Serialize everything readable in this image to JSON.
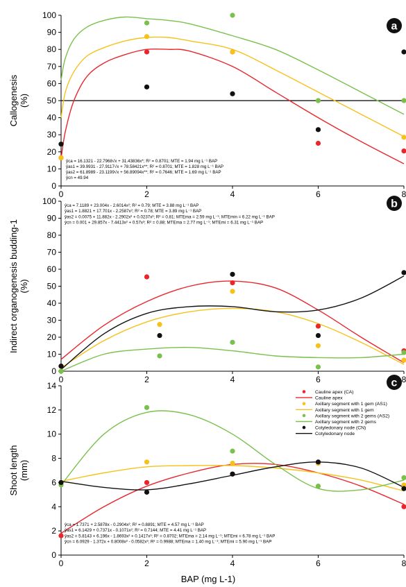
{
  "colors": {
    "CA": "#e8262b",
    "AS1": "#f7c11b",
    "AS2": "#7ac04c",
    "CN": "#111111"
  },
  "xlabel": "BAP (mg L-1)",
  "chart_data": [
    {
      "type": "scatter",
      "panel_label": "a",
      "ylabel_lines": [
        "Callogenesis",
        "(%)"
      ],
      "ylim": [
        0,
        100
      ],
      "yticks": [
        0,
        10,
        20,
        30,
        40,
        50,
        60,
        70,
        80,
        90,
        100
      ],
      "xlim": [
        0,
        8
      ],
      "xticks": [
        0,
        2,
        4,
        6,
        8
      ],
      "reference_line": 50,
      "equations": [
        "ŷca = 16.1321 - 22.7968√x + 31.43836x*; R² = 0.8701; MTE = 1.94 mg L⁻¹ BAP",
        "ŷas1 = 39.9931 - 27.9117√x + 78.58421x**; R² = 0.8701; MTE = 1.828 mg L⁻¹ BAP",
        "ŷas2 = 61.8989 - 23.1199√x + 56.89094x**; R² = 0.7646; MTE = 1.69 mg L⁻¹ BAP",
        "ŷcn = 49.94"
      ],
      "series": [
        {
          "key": "CA",
          "x": [
            0,
            2,
            4,
            6,
            8
          ],
          "y": [
            16.5,
            78.5,
            78.5,
            25,
            20.5
          ]
        },
        {
          "key": "AS1",
          "x": [
            0,
            2,
            4,
            6,
            8
          ],
          "y": [
            16.5,
            87.5,
            78.5,
            50,
            28.5
          ]
        },
        {
          "key": "AS2",
          "x": [
            0,
            2,
            4,
            6,
            8
          ],
          "y": [
            24.5,
            95.5,
            100,
            50,
            50
          ]
        },
        {
          "key": "CN",
          "x": [
            0,
            2,
            4,
            6,
            8
          ],
          "y": [
            24.5,
            58,
            54,
            33,
            78.5
          ]
        }
      ],
      "curves": [
        {
          "key": "CA",
          "x": [
            0,
            0.1,
            0.3,
            0.6,
            1,
            1.5,
            2,
            2.5,
            3,
            4,
            5,
            6,
            7,
            8
          ],
          "y": [
            16,
            32,
            50,
            64,
            72,
            77,
            80,
            80,
            79,
            70,
            55,
            40,
            26,
            13
          ]
        },
        {
          "key": "AS1",
          "x": [
            0,
            0.1,
            0.3,
            0.6,
            1,
            1.5,
            2,
            2.5,
            3,
            4,
            5,
            6,
            7,
            8
          ],
          "y": [
            40,
            55,
            67,
            76,
            81,
            85,
            87,
            87,
            85,
            80,
            68,
            55,
            42,
            29
          ]
        },
        {
          "key": "AS2",
          "x": [
            0,
            0.1,
            0.3,
            0.6,
            1,
            1.5,
            2,
            2.5,
            3,
            4,
            5,
            6,
            7,
            8
          ],
          "y": [
            62,
            75,
            86,
            93,
            97,
            99,
            98,
            97,
            95,
            88,
            80,
            68,
            55,
            42
          ]
        }
      ]
    },
    {
      "type": "scatter",
      "panel_label": "b",
      "ylabel_lines": [
        "Indirect organogenesis budding-1",
        "(%)"
      ],
      "ylim": [
        0,
        100
      ],
      "yticks": [
        0,
        10,
        20,
        30,
        40,
        50,
        60,
        70,
        80,
        90,
        100
      ],
      "xlim": [
        0,
        8
      ],
      "xticks": [
        0,
        2,
        4,
        6,
        8
      ],
      "equations": [
        "ŷca = 7.1189 + 23.004x - 2.6014x²; R² = 0.79; MTE = 3.88 mg L⁻¹ BAP",
        "ŷas1 = 1.8821 + 17.701x - 2.2587x²; R² = 0.78; MTE = 3.89 mg L⁻¹ BAP",
        "ŷas2 = 0.0075 + 11.882x - 2.2902x² + 0.0237x³; R² = 0.81; MTEma = 2.59 mg L⁻¹; MTEmin = 6.22 mg L⁻¹ BAP",
        "ŷcn = 0.001 + 29.857x - 7.4413x² + 0.57x³; R² = 0.88; MTEma = 2.77 mg L⁻¹; MTEmi = 6.31 mg L⁻¹ BAP"
      ],
      "series": [
        {
          "key": "CA",
          "x": [
            0,
            2,
            4,
            6,
            8
          ],
          "y": [
            3,
            55.5,
            52,
            26.5,
            12
          ]
        },
        {
          "key": "AS1",
          "x": [
            0,
            2.3,
            4,
            6,
            8
          ],
          "y": [
            0,
            27.5,
            47,
            15,
            6.5
          ]
        },
        {
          "key": "AS2",
          "x": [
            0,
            2.3,
            4,
            6,
            8
          ],
          "y": [
            0,
            9,
            17,
            2.5,
            11
          ]
        },
        {
          "key": "CN",
          "x": [
            0,
            2.3,
            4,
            6,
            8
          ],
          "y": [
            3,
            21,
            57,
            21,
            58
          ]
        }
      ],
      "curves": [
        {
          "key": "CA",
          "x": [
            0,
            1,
            2,
            3,
            4,
            5,
            6,
            7,
            8
          ],
          "y": [
            7,
            27,
            41,
            50,
            53,
            49,
            36,
            20,
            5
          ]
        },
        {
          "key": "AS1",
          "x": [
            0,
            1,
            2,
            3,
            4,
            5,
            6,
            7,
            8
          ],
          "y": [
            2,
            18,
            29,
            35,
            37,
            35,
            28,
            17,
            4
          ]
        },
        {
          "key": "AS2",
          "x": [
            0,
            1,
            2,
            3,
            4,
            5,
            6,
            7,
            8
          ],
          "y": [
            0,
            10,
            13,
            14,
            12,
            9,
            8,
            8,
            10
          ]
        },
        {
          "key": "CN",
          "x": [
            0,
            1,
            2,
            3,
            4,
            5,
            6,
            7,
            8
          ],
          "y": [
            1,
            22,
            34,
            38,
            38,
            35,
            36,
            43,
            56
          ]
        }
      ]
    },
    {
      "type": "scatter",
      "panel_label": "c",
      "ylabel_lines": [
        "Shoot length",
        "(mm)"
      ],
      "ylim": [
        0,
        14
      ],
      "yticks": [
        0,
        2,
        4,
        6,
        8,
        10,
        12,
        14
      ],
      "xlim": [
        0,
        8
      ],
      "xticks": [
        0,
        2,
        4,
        6,
        8
      ],
      "legend": {
        "position": "top-right",
        "entries": [
          {
            "key": "CA",
            "kind": "point",
            "label": "Cauline apex (CA)"
          },
          {
            "key": "CA",
            "kind": "line",
            "label": "Cauline apex"
          },
          {
            "key": "AS1",
            "kind": "point",
            "label": "Axillary segment with 1 gem (AS1)"
          },
          {
            "key": "AS1",
            "kind": "line",
            "label": "Axillary segment with 1 gem"
          },
          {
            "key": "AS2",
            "kind": "point",
            "label": "Axillary segment with 2 gems (AS2)"
          },
          {
            "key": "AS2",
            "kind": "line",
            "label": "Axillary segment with 2 gems"
          },
          {
            "key": "CN",
            "kind": "point",
            "label": "Cotyledonary node (CN)"
          },
          {
            "key": "CN",
            "kind": "line",
            "label": "Cotyledonary node"
          }
        ]
      },
      "equations": [
        "ŷca = 1.7371 + 2.5878x - 0.2904x²; R² = 0.8891; MTE = 4.57 mg L⁻¹ BAP",
        "ŷas1 = 6.1429 + 0.7371x - 0.1071x²; R² = 0.7144; MTE = 4.41 mg L⁻¹ BAP",
        "ŷas2 = 5.8143 + 6.196x - 1.8693x² + 0.1417x³; R² = 0.8702; MTEma = 2.14 mg L⁻¹; MTEmi = 6.78 mg L⁻¹ BAP",
        "ŷcn = 6.0929 - 1.372x + 0.8008x² - 0.0582x³; R² = 0.9988; MTEma = 1.40 mg L⁻¹; MTEmi = 5.90 mg L⁻¹ BAP"
      ],
      "series": [
        {
          "key": "CA",
          "x": [
            0,
            2,
            4,
            6,
            8
          ],
          "y": [
            1.6,
            6.0,
            6.7,
            7.6,
            4.0
          ]
        },
        {
          "key": "AS1",
          "x": [
            0,
            2,
            4,
            6,
            8
          ],
          "y": [
            6.0,
            7.7,
            7.6,
            7.6,
            5.8
          ]
        },
        {
          "key": "AS2",
          "x": [
            0,
            2,
            4,
            6,
            8
          ],
          "y": [
            5.8,
            12.2,
            8.6,
            5.7,
            6.4
          ]
        },
        {
          "key": "CN",
          "x": [
            0,
            2,
            4,
            6,
            8
          ],
          "y": [
            6.0,
            5.2,
            6.7,
            7.7,
            5.5
          ]
        }
      ],
      "curves": [
        {
          "key": "CA",
          "x": [
            0,
            1,
            2,
            3,
            4,
            5,
            6,
            7,
            8
          ],
          "y": [
            1.8,
            4.0,
            5.7,
            6.8,
            7.5,
            7.5,
            6.8,
            5.7,
            4.2
          ]
        },
        {
          "key": "AS1",
          "x": [
            0,
            1,
            2,
            3,
            4,
            5,
            6,
            7,
            8
          ],
          "y": [
            6.1,
            6.8,
            7.3,
            7.4,
            7.4,
            7.2,
            6.8,
            6.2,
            5.3
          ]
        },
        {
          "key": "AS2",
          "x": [
            0,
            1,
            2,
            3,
            4,
            5,
            6,
            7,
            8
          ],
          "y": [
            5.8,
            10.0,
            11.8,
            11.6,
            10.0,
            7.5,
            5.5,
            5.4,
            6.2
          ]
        },
        {
          "key": "CN",
          "x": [
            0,
            1,
            2,
            3,
            4,
            5,
            6,
            7,
            8
          ],
          "y": [
            6.1,
            5.6,
            5.4,
            5.9,
            6.6,
            7.3,
            7.7,
            7.2,
            5.6
          ]
        }
      ]
    }
  ]
}
